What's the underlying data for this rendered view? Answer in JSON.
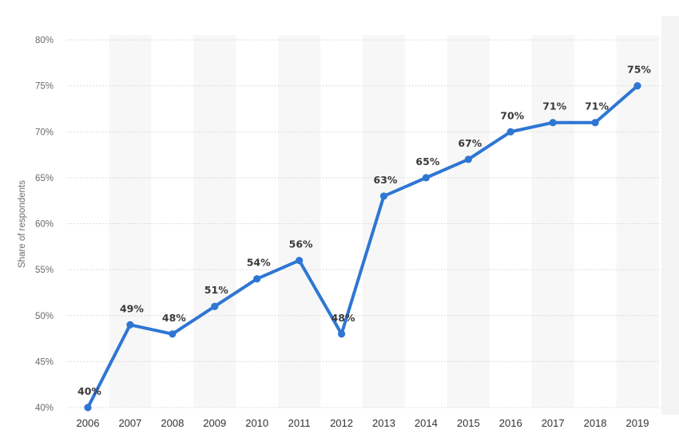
{
  "chart_data": {
    "type": "line",
    "title": "",
    "xlabel": "",
    "ylabel": "Share of respondents",
    "categories": [
      "2006",
      "2007",
      "2008",
      "2009",
      "2010",
      "2011",
      "2012",
      "2013",
      "2014",
      "2015",
      "2016",
      "2017",
      "2018",
      "2019"
    ],
    "series": [
      {
        "values": [
          40,
          49,
          48,
          51,
          54,
          56,
          48,
          63,
          65,
          67,
          70,
          71,
          71,
          75
        ],
        "data_labels": [
          "40%",
          "49%",
          "48%",
          "51%",
          "54%",
          "56%",
          "48%",
          "63%",
          "65%",
          "67%",
          "70%",
          "71%",
          "71%",
          "75%"
        ],
        "color": "#2e76d3"
      }
    ],
    "ylim": [
      40,
      80
    ],
    "y_ticks": [
      40,
      45,
      50,
      55,
      60,
      65,
      70,
      75,
      80
    ],
    "y_tick_labels": [
      "40%",
      "45%",
      "50%",
      "55%",
      "60%",
      "65%",
      "70%",
      "75%",
      "80%"
    ],
    "grid": "horizontal dotted",
    "column_shading": "alternating",
    "legend": "none"
  }
}
